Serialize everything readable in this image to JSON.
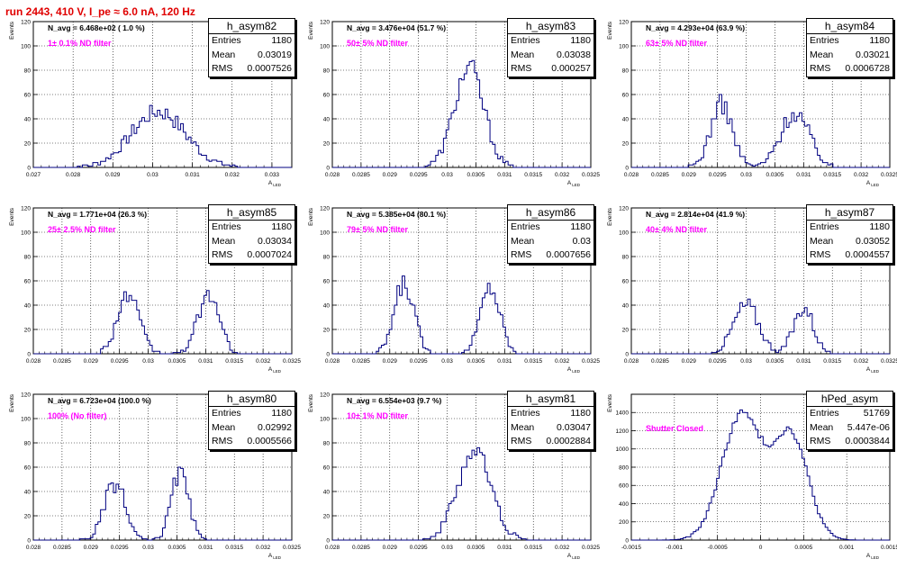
{
  "header": {
    "title": "run 2443,   410 V, I_pe ≈ 6.0 nA, 120 Hz"
  },
  "colors": {
    "title": "#e00000",
    "line": "#000080",
    "filter_text": "#ff00ff"
  },
  "chart_data": [
    {
      "type": "step",
      "name": "h_asym82",
      "annotation": "N_avg = 6.468e+02 ( 1.0 %)",
      "filter": "1± 0.1% ND filter",
      "stats": {
        "entries": "1180",
        "mean": "0.03019",
        "rms": "0.0007526"
      },
      "ylabel": "Events",
      "xlabel": "A_LED",
      "xlim": [
        0.027,
        0.0335
      ],
      "ylim": [
        0,
        120
      ],
      "xticks": [
        0.027,
        0.028,
        0.029,
        0.03,
        0.031,
        0.032,
        0.033
      ],
      "xticklabels": [
        "0.027",
        "0.028",
        "0.029",
        "0.03",
        "0.031",
        "0.032",
        "0.033"
      ],
      "yticks": [
        0,
        20,
        40,
        60,
        80,
        100,
        120
      ],
      "yticklabels": [
        "0",
        "20",
        "40",
        "60",
        "80",
        "100",
        "120"
      ],
      "peaks": [
        {
          "mu": 0.03015,
          "sigma": 0.00068,
          "amp": 46
        }
      ],
      "range": [
        0.0278,
        0.0327
      ]
    },
    {
      "type": "step",
      "name": "h_asym83",
      "annotation": "N_avg = 3.476e+04 (51.7 %)",
      "filter": "50± 5% ND filter",
      "stats": {
        "entries": "1180",
        "mean": "0.03038",
        "rms": "0.000257"
      },
      "ylabel": "Events",
      "xlabel": "A_LED",
      "xlim": [
        0.028,
        0.0325
      ],
      "ylim": [
        0,
        120
      ],
      "xticks": [
        0.028,
        0.0285,
        0.029,
        0.0295,
        0.03,
        0.0305,
        0.031,
        0.0315,
        0.032,
        0.0325
      ],
      "xticklabels": [
        "0.028",
        "0.0285",
        "0.029",
        "0.0295",
        "0.03",
        "0.0305",
        "0.031",
        "0.0315",
        "0.032",
        "0.0325"
      ],
      "yticks": [
        0,
        20,
        40,
        60,
        80,
        100,
        120
      ],
      "yticklabels": [
        "0",
        "20",
        "40",
        "60",
        "80",
        "100",
        "120"
      ],
      "peaks": [
        {
          "mu": 0.03038,
          "sigma": 0.000257,
          "amp": 82
        }
      ],
      "range": [
        0.0295,
        0.0312
      ]
    },
    {
      "type": "step",
      "name": "h_asym84",
      "annotation": "N_avg = 4.293e+04 (63.9 %)",
      "filter": "63± 5% ND filter",
      "stats": {
        "entries": "1180",
        "mean": "0.03021",
        "rms": "0.0006728"
      },
      "ylabel": "Events",
      "xlabel": "A_LED",
      "xlim": [
        0.028,
        0.0325
      ],
      "ylim": [
        0,
        120
      ],
      "xticks": [
        0.028,
        0.0285,
        0.029,
        0.0295,
        0.03,
        0.0305,
        0.031,
        0.0315,
        0.032,
        0.0325
      ],
      "xticklabels": [
        "0.028",
        "0.0285",
        "0.029",
        "0.0295",
        "0.03",
        "0.0305",
        "0.031",
        "0.0315",
        "0.032",
        "0.0325"
      ],
      "yticks": [
        0,
        20,
        40,
        60,
        80,
        100,
        120
      ],
      "yticklabels": [
        "0",
        "20",
        "40",
        "60",
        "80",
        "100",
        "120"
      ],
      "peaks": [
        {
          "mu": 0.02957,
          "sigma": 0.00019,
          "amp": 52
        },
        {
          "mu": 0.03085,
          "sigma": 0.00025,
          "amp": 45
        }
      ],
      "range": [
        0.029,
        0.0315
      ]
    },
    {
      "type": "step",
      "name": "h_asym85",
      "annotation": "N_avg = 1.771e+04 (26.3 %)",
      "filter": "25± 2.5% ND filter",
      "stats": {
        "entries": "1180",
        "mean": "0.03034",
        "rms": "0.0007024"
      },
      "ylabel": "Events",
      "xlabel": "A_LED",
      "xlim": [
        0.028,
        0.0325
      ],
      "ylim": [
        0,
        120
      ],
      "xticks": [
        0.028,
        0.0285,
        0.029,
        0.0295,
        0.03,
        0.0305,
        0.031,
        0.0315,
        0.032,
        0.0325
      ],
      "xticklabels": [
        "0.028",
        "0.0285",
        "0.029",
        "0.0295",
        "0.03",
        "0.0305",
        "0.031",
        "0.0315",
        "0.032",
        "0.0325"
      ],
      "yticks": [
        0,
        20,
        40,
        60,
        80,
        100,
        120
      ],
      "yticklabels": [
        "0",
        "20",
        "40",
        "60",
        "80",
        "100",
        "120"
      ],
      "peaks": [
        {
          "mu": 0.02965,
          "sigma": 0.00019,
          "amp": 48
        },
        {
          "mu": 0.03105,
          "sigma": 0.00018,
          "amp": 50
        }
      ],
      "range": [
        0.0291,
        0.0316
      ]
    },
    {
      "type": "step",
      "name": "h_asym86",
      "annotation": "N_avg = 5.385e+04 (80.1 %)",
      "filter": "79± 5% ND filter",
      "stats": {
        "entries": "1180",
        "mean": "0.03",
        "rms": "0.0007656"
      },
      "ylabel": "Events",
      "xlabel": "A_LED",
      "xlim": [
        0.028,
        0.0325
      ],
      "ylim": [
        0,
        120
      ],
      "xticks": [
        0.028,
        0.0285,
        0.029,
        0.0295,
        0.03,
        0.0305,
        0.031,
        0.0315,
        0.032,
        0.0325
      ],
      "xticklabels": [
        "0.028",
        "0.0285",
        "0.029",
        "0.0295",
        "0.03",
        "0.0305",
        "0.031",
        "0.0315",
        "0.032",
        "0.0325"
      ],
      "yticks": [
        0,
        20,
        40,
        60,
        80,
        100,
        120
      ],
      "yticklabels": [
        "0",
        "20",
        "40",
        "60",
        "80",
        "100",
        "120"
      ],
      "peaks": [
        {
          "mu": 0.02925,
          "sigma": 0.00017,
          "amp": 58
        },
        {
          "mu": 0.03075,
          "sigma": 0.00017,
          "amp": 55
        }
      ],
      "range": [
        0.0287,
        0.0312
      ]
    },
    {
      "type": "step",
      "name": "h_asym87",
      "annotation": "N_avg = 2.814e+04 (41.9 %)",
      "filter": "40± 4% ND filter",
      "stats": {
        "entries": "1180",
        "mean": "0.03052",
        "rms": "0.0004557"
      },
      "ylabel": "Events",
      "xlabel": "A_LED",
      "xlim": [
        0.028,
        0.0325
      ],
      "ylim": [
        0,
        120
      ],
      "xticks": [
        0.028,
        0.0285,
        0.029,
        0.0295,
        0.03,
        0.0305,
        0.031,
        0.0315,
        0.032,
        0.0325
      ],
      "xticklabels": [
        "0.028",
        "0.0285",
        "0.029",
        "0.0295",
        "0.03",
        "0.0305",
        "0.031",
        "0.0315",
        "0.032",
        "0.0325"
      ],
      "yticks": [
        0,
        20,
        40,
        60,
        80,
        100,
        120
      ],
      "yticklabels": [
        "0",
        "20",
        "40",
        "60",
        "80",
        "100",
        "120"
      ],
      "peaks": [
        {
          "mu": 0.03,
          "sigma": 0.00022,
          "amp": 40
        },
        {
          "mu": 0.031,
          "sigma": 0.00017,
          "amp": 38
        }
      ],
      "range": [
        0.0294,
        0.0316
      ]
    },
    {
      "type": "step",
      "name": "h_asym80",
      "annotation": "N_avg = 6.723e+04 (100.0 %)",
      "filter": "100% (No filter)",
      "stats": {
        "entries": "1180",
        "mean": "0.02992",
        "rms": "0.0005566"
      },
      "ylabel": "Events",
      "xlabel": "A_LED",
      "xlim": [
        0.028,
        0.0325
      ],
      "ylim": [
        0,
        120
      ],
      "xticks": [
        0.028,
        0.0285,
        0.029,
        0.0295,
        0.03,
        0.0305,
        0.031,
        0.0315,
        0.032,
        0.0325
      ],
      "xticklabels": [
        "0.028",
        "0.0285",
        "0.029",
        "0.0295",
        "0.03",
        "0.0305",
        "0.031",
        "0.0315",
        "0.032",
        "0.0325"
      ],
      "yticks": [
        0,
        20,
        40,
        60,
        80,
        100,
        120
      ],
      "yticklabels": [
        "0",
        "20",
        "40",
        "60",
        "80",
        "100",
        "120"
      ],
      "peaks": [
        {
          "mu": 0.02942,
          "sigma": 0.00018,
          "amp": 46
        },
        {
          "mu": 0.03055,
          "sigma": 0.00015,
          "amp": 55
        }
      ],
      "range": [
        0.0288,
        0.0311
      ]
    },
    {
      "type": "step",
      "name": "h_asym81",
      "annotation": "N_avg = 6.554e+03 (9.7 %)",
      "filter": "10± 1% ND filter",
      "stats": {
        "entries": "1180",
        "mean": "0.03047",
        "rms": "0.0002884"
      },
      "ylabel": "Events",
      "xlabel": "A_LED",
      "xlim": [
        0.028,
        0.0325
      ],
      "ylim": [
        0,
        120
      ],
      "xticks": [
        0.028,
        0.0285,
        0.029,
        0.0295,
        0.03,
        0.0305,
        0.031,
        0.0315,
        0.032,
        0.0325
      ],
      "xticklabels": [
        "0.028",
        "0.0285",
        "0.029",
        "0.0295",
        "0.03",
        "0.0305",
        "0.031",
        "0.0315",
        "0.032",
        "0.0325"
      ],
      "yticks": [
        0,
        20,
        40,
        60,
        80,
        100,
        120
      ],
      "yticklabels": [
        "0",
        "20",
        "40",
        "60",
        "80",
        "100",
        "120"
      ],
      "peaks": [
        {
          "mu": 0.03047,
          "sigma": 0.00029,
          "amp": 74
        }
      ],
      "range": [
        0.0295,
        0.0314
      ]
    },
    {
      "type": "step",
      "name": "hPed_asym",
      "annotation": "",
      "filter": "Shutter Closed",
      "stats": {
        "entries": "51769",
        "mean": "5.447e-06",
        "rms": "0.0003844"
      },
      "ylabel": "Events",
      "xlabel": "A_LED",
      "xlim": [
        -0.0015,
        0.0015
      ],
      "ylim": [
        0,
        1600
      ],
      "xticks": [
        -0.0015,
        -0.001,
        -0.0005,
        0,
        0.0005,
        0.001,
        0.0015
      ],
      "xticklabels": [
        "-0.0015",
        "-0.001",
        "-0.0005",
        "0",
        "0.0005",
        "0.001",
        "0.0015"
      ],
      "yticks": [
        0,
        200,
        400,
        600,
        800,
        1000,
        1200,
        1400
      ],
      "yticklabels": [
        "0",
        "200",
        "400",
        "600",
        "800",
        "1000",
        "1200",
        "1400"
      ],
      "peaks": [
        {
          "mu": -0.00022,
          "sigma": 0.00023,
          "amp": 1380
        },
        {
          "mu": 0.00035,
          "sigma": 0.0002,
          "amp": 1150
        }
      ],
      "range": [
        -0.0012,
        0.0011
      ]
    }
  ]
}
